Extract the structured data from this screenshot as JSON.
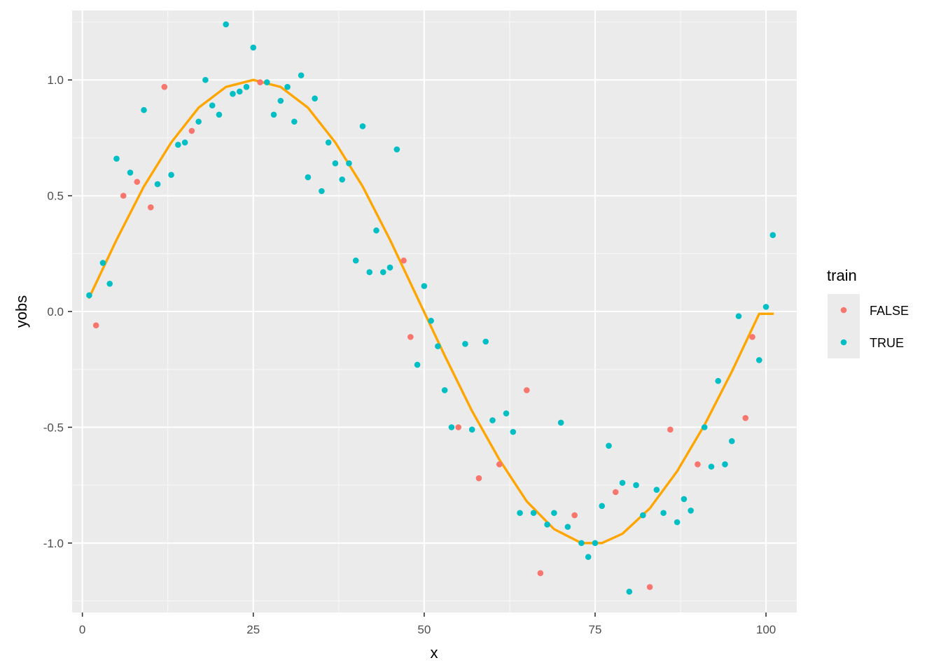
{
  "chart_data": {
    "type": "scatter",
    "xlabel": "x",
    "ylabel": "yobs",
    "xlim": [
      -1.5,
      104.5
    ],
    "ylim": [
      -1.3,
      1.3
    ],
    "x_ticks": [
      0,
      25,
      50,
      75,
      100
    ],
    "x_tick_labels": [
      "0",
      "25",
      "50",
      "75",
      "100"
    ],
    "y_ticks": [
      -1.0,
      -0.5,
      0.0,
      0.5,
      1.0
    ],
    "y_tick_labels": [
      "-1.0",
      "-0.5",
      "0.0",
      "0.5",
      "1.0"
    ],
    "grid": true,
    "legend": {
      "title": "train",
      "position": "right",
      "entries": [
        {
          "label": "FALSE",
          "color": "#F8766D"
        },
        {
          "label": "TRUE",
          "color": "#00BFC4"
        }
      ]
    },
    "colors": {
      "panel_background": "#EBEBEB",
      "grid_major": "#FFFFFF",
      "grid_minor": "#F7F7F7",
      "curve": "#FFA500",
      "false": "#F8766D",
      "true": "#00BFC4"
    },
    "points": [
      {
        "x": 1,
        "y": 0.07,
        "train": "TRUE"
      },
      {
        "x": 2,
        "y": -0.06,
        "train": "FALSE"
      },
      {
        "x": 3,
        "y": 0.21,
        "train": "TRUE"
      },
      {
        "x": 4,
        "y": 0.12,
        "train": "TRUE"
      },
      {
        "x": 5,
        "y": 0.66,
        "train": "TRUE"
      },
      {
        "x": 6,
        "y": 0.5,
        "train": "FALSE"
      },
      {
        "x": 7,
        "y": 0.6,
        "train": "TRUE"
      },
      {
        "x": 8,
        "y": 0.56,
        "train": "FALSE"
      },
      {
        "x": 9,
        "y": 0.87,
        "train": "TRUE"
      },
      {
        "x": 10,
        "y": 0.45,
        "train": "FALSE"
      },
      {
        "x": 11,
        "y": 0.55,
        "train": "TRUE"
      },
      {
        "x": 12,
        "y": 0.97,
        "train": "FALSE"
      },
      {
        "x": 13,
        "y": 0.59,
        "train": "TRUE"
      },
      {
        "x": 14,
        "y": 0.72,
        "train": "TRUE"
      },
      {
        "x": 15,
        "y": 0.73,
        "train": "TRUE"
      },
      {
        "x": 16,
        "y": 0.78,
        "train": "FALSE"
      },
      {
        "x": 17,
        "y": 0.82,
        "train": "TRUE"
      },
      {
        "x": 18,
        "y": 1.0,
        "train": "TRUE"
      },
      {
        "x": 19,
        "y": 0.89,
        "train": "TRUE"
      },
      {
        "x": 20,
        "y": 0.85,
        "train": "TRUE"
      },
      {
        "x": 21,
        "y": 1.24,
        "train": "TRUE"
      },
      {
        "x": 22,
        "y": 0.94,
        "train": "TRUE"
      },
      {
        "x": 23,
        "y": 0.95,
        "train": "TRUE"
      },
      {
        "x": 24,
        "y": 0.97,
        "train": "TRUE"
      },
      {
        "x": 25,
        "y": 1.14,
        "train": "TRUE"
      },
      {
        "x": 26,
        "y": 0.99,
        "train": "FALSE"
      },
      {
        "x": 27,
        "y": 0.99,
        "train": "TRUE"
      },
      {
        "x": 28,
        "y": 0.85,
        "train": "TRUE"
      },
      {
        "x": 29,
        "y": 0.91,
        "train": "TRUE"
      },
      {
        "x": 30,
        "y": 0.97,
        "train": "TRUE"
      },
      {
        "x": 31,
        "y": 0.82,
        "train": "TRUE"
      },
      {
        "x": 32,
        "y": 1.02,
        "train": "TRUE"
      },
      {
        "x": 33,
        "y": 0.58,
        "train": "TRUE"
      },
      {
        "x": 34,
        "y": 0.92,
        "train": "TRUE"
      },
      {
        "x": 35,
        "y": 0.52,
        "train": "TRUE"
      },
      {
        "x": 36,
        "y": 0.73,
        "train": "TRUE"
      },
      {
        "x": 37,
        "y": 0.64,
        "train": "TRUE"
      },
      {
        "x": 38,
        "y": 0.57,
        "train": "TRUE"
      },
      {
        "x": 39,
        "y": 0.64,
        "train": "TRUE"
      },
      {
        "x": 40,
        "y": 0.22,
        "train": "TRUE"
      },
      {
        "x": 41,
        "y": 0.8,
        "train": "TRUE"
      },
      {
        "x": 42,
        "y": 0.17,
        "train": "TRUE"
      },
      {
        "x": 43,
        "y": 0.35,
        "train": "TRUE"
      },
      {
        "x": 44,
        "y": 0.17,
        "train": "TRUE"
      },
      {
        "x": 45,
        "y": 0.19,
        "train": "TRUE"
      },
      {
        "x": 46,
        "y": 0.7,
        "train": "TRUE"
      },
      {
        "x": 47,
        "y": 0.22,
        "train": "FALSE"
      },
      {
        "x": 48,
        "y": -0.11,
        "train": "FALSE"
      },
      {
        "x": 49,
        "y": -0.23,
        "train": "TRUE"
      },
      {
        "x": 50,
        "y": 0.11,
        "train": "TRUE"
      },
      {
        "x": 51,
        "y": -0.04,
        "train": "TRUE"
      },
      {
        "x": 52,
        "y": -0.15,
        "train": "TRUE"
      },
      {
        "x": 53,
        "y": -0.34,
        "train": "TRUE"
      },
      {
        "x": 54,
        "y": -0.5,
        "train": "TRUE"
      },
      {
        "x": 55,
        "y": -0.5,
        "train": "FALSE"
      },
      {
        "x": 56,
        "y": -0.14,
        "train": "TRUE"
      },
      {
        "x": 57,
        "y": -0.51,
        "train": "TRUE"
      },
      {
        "x": 58,
        "y": -0.72,
        "train": "FALSE"
      },
      {
        "x": 59,
        "y": -0.13,
        "train": "TRUE"
      },
      {
        "x": 60,
        "y": -0.47,
        "train": "TRUE"
      },
      {
        "x": 61,
        "y": -0.66,
        "train": "FALSE"
      },
      {
        "x": 62,
        "y": -0.44,
        "train": "TRUE"
      },
      {
        "x": 63,
        "y": -0.52,
        "train": "TRUE"
      },
      {
        "x": 64,
        "y": -0.87,
        "train": "TRUE"
      },
      {
        "x": 65,
        "y": -0.34,
        "train": "FALSE"
      },
      {
        "x": 66,
        "y": -0.87,
        "train": "TRUE"
      },
      {
        "x": 67,
        "y": -1.13,
        "train": "FALSE"
      },
      {
        "x": 68,
        "y": -0.92,
        "train": "TRUE"
      },
      {
        "x": 69,
        "y": -0.87,
        "train": "TRUE"
      },
      {
        "x": 70,
        "y": -0.48,
        "train": "TRUE"
      },
      {
        "x": 71,
        "y": -0.93,
        "train": "TRUE"
      },
      {
        "x": 72,
        "y": -0.88,
        "train": "FALSE"
      },
      {
        "x": 73,
        "y": -1.0,
        "train": "TRUE"
      },
      {
        "x": 74,
        "y": -1.06,
        "train": "TRUE"
      },
      {
        "x": 75,
        "y": -1.0,
        "train": "TRUE"
      },
      {
        "x": 76,
        "y": -0.84,
        "train": "TRUE"
      },
      {
        "x": 77,
        "y": -0.58,
        "train": "TRUE"
      },
      {
        "x": 78,
        "y": -0.78,
        "train": "FALSE"
      },
      {
        "x": 79,
        "y": -0.74,
        "train": "TRUE"
      },
      {
        "x": 80,
        "y": -1.21,
        "train": "TRUE"
      },
      {
        "x": 81,
        "y": -0.75,
        "train": "TRUE"
      },
      {
        "x": 82,
        "y": -0.88,
        "train": "TRUE"
      },
      {
        "x": 83,
        "y": -1.19,
        "train": "FALSE"
      },
      {
        "x": 84,
        "y": -0.77,
        "train": "TRUE"
      },
      {
        "x": 85,
        "y": -0.87,
        "train": "TRUE"
      },
      {
        "x": 86,
        "y": -0.51,
        "train": "FALSE"
      },
      {
        "x": 87,
        "y": -0.91,
        "train": "TRUE"
      },
      {
        "x": 88,
        "y": -0.81,
        "train": "TRUE"
      },
      {
        "x": 89,
        "y": -0.86,
        "train": "TRUE"
      },
      {
        "x": 90,
        "y": -0.66,
        "train": "FALSE"
      },
      {
        "x": 91,
        "y": -0.5,
        "train": "TRUE"
      },
      {
        "x": 92,
        "y": -0.67,
        "train": "TRUE"
      },
      {
        "x": 93,
        "y": -0.3,
        "train": "TRUE"
      },
      {
        "x": 94,
        "y": -0.66,
        "train": "TRUE"
      },
      {
        "x": 95,
        "y": -0.56,
        "train": "TRUE"
      },
      {
        "x": 96,
        "y": -0.02,
        "train": "TRUE"
      },
      {
        "x": 97,
        "y": -0.46,
        "train": "FALSE"
      },
      {
        "x": 98,
        "y": -0.11,
        "train": "FALSE"
      },
      {
        "x": 99,
        "y": -0.21,
        "train": "TRUE"
      },
      {
        "x": 100,
        "y": 0.02,
        "train": "TRUE"
      },
      {
        "x": 101,
        "y": 0.33,
        "train": "TRUE"
      }
    ],
    "curve": {
      "x": [
        1,
        5,
        9,
        13,
        17,
        21,
        25,
        29,
        33,
        37,
        41,
        45,
        49,
        53,
        57,
        61,
        65,
        69,
        73,
        76,
        79,
        83,
        87,
        91,
        95,
        99,
        101
      ],
      "y": [
        0.06,
        0.31,
        0.54,
        0.73,
        0.88,
        0.97,
        1.0,
        0.97,
        0.88,
        0.73,
        0.54,
        0.31,
        0.06,
        -0.19,
        -0.43,
        -0.64,
        -0.82,
        -0.94,
        -1.0,
        -1.0,
        -0.96,
        -0.85,
        -0.69,
        -0.49,
        -0.26,
        -0.01,
        -0.01
      ]
    }
  }
}
